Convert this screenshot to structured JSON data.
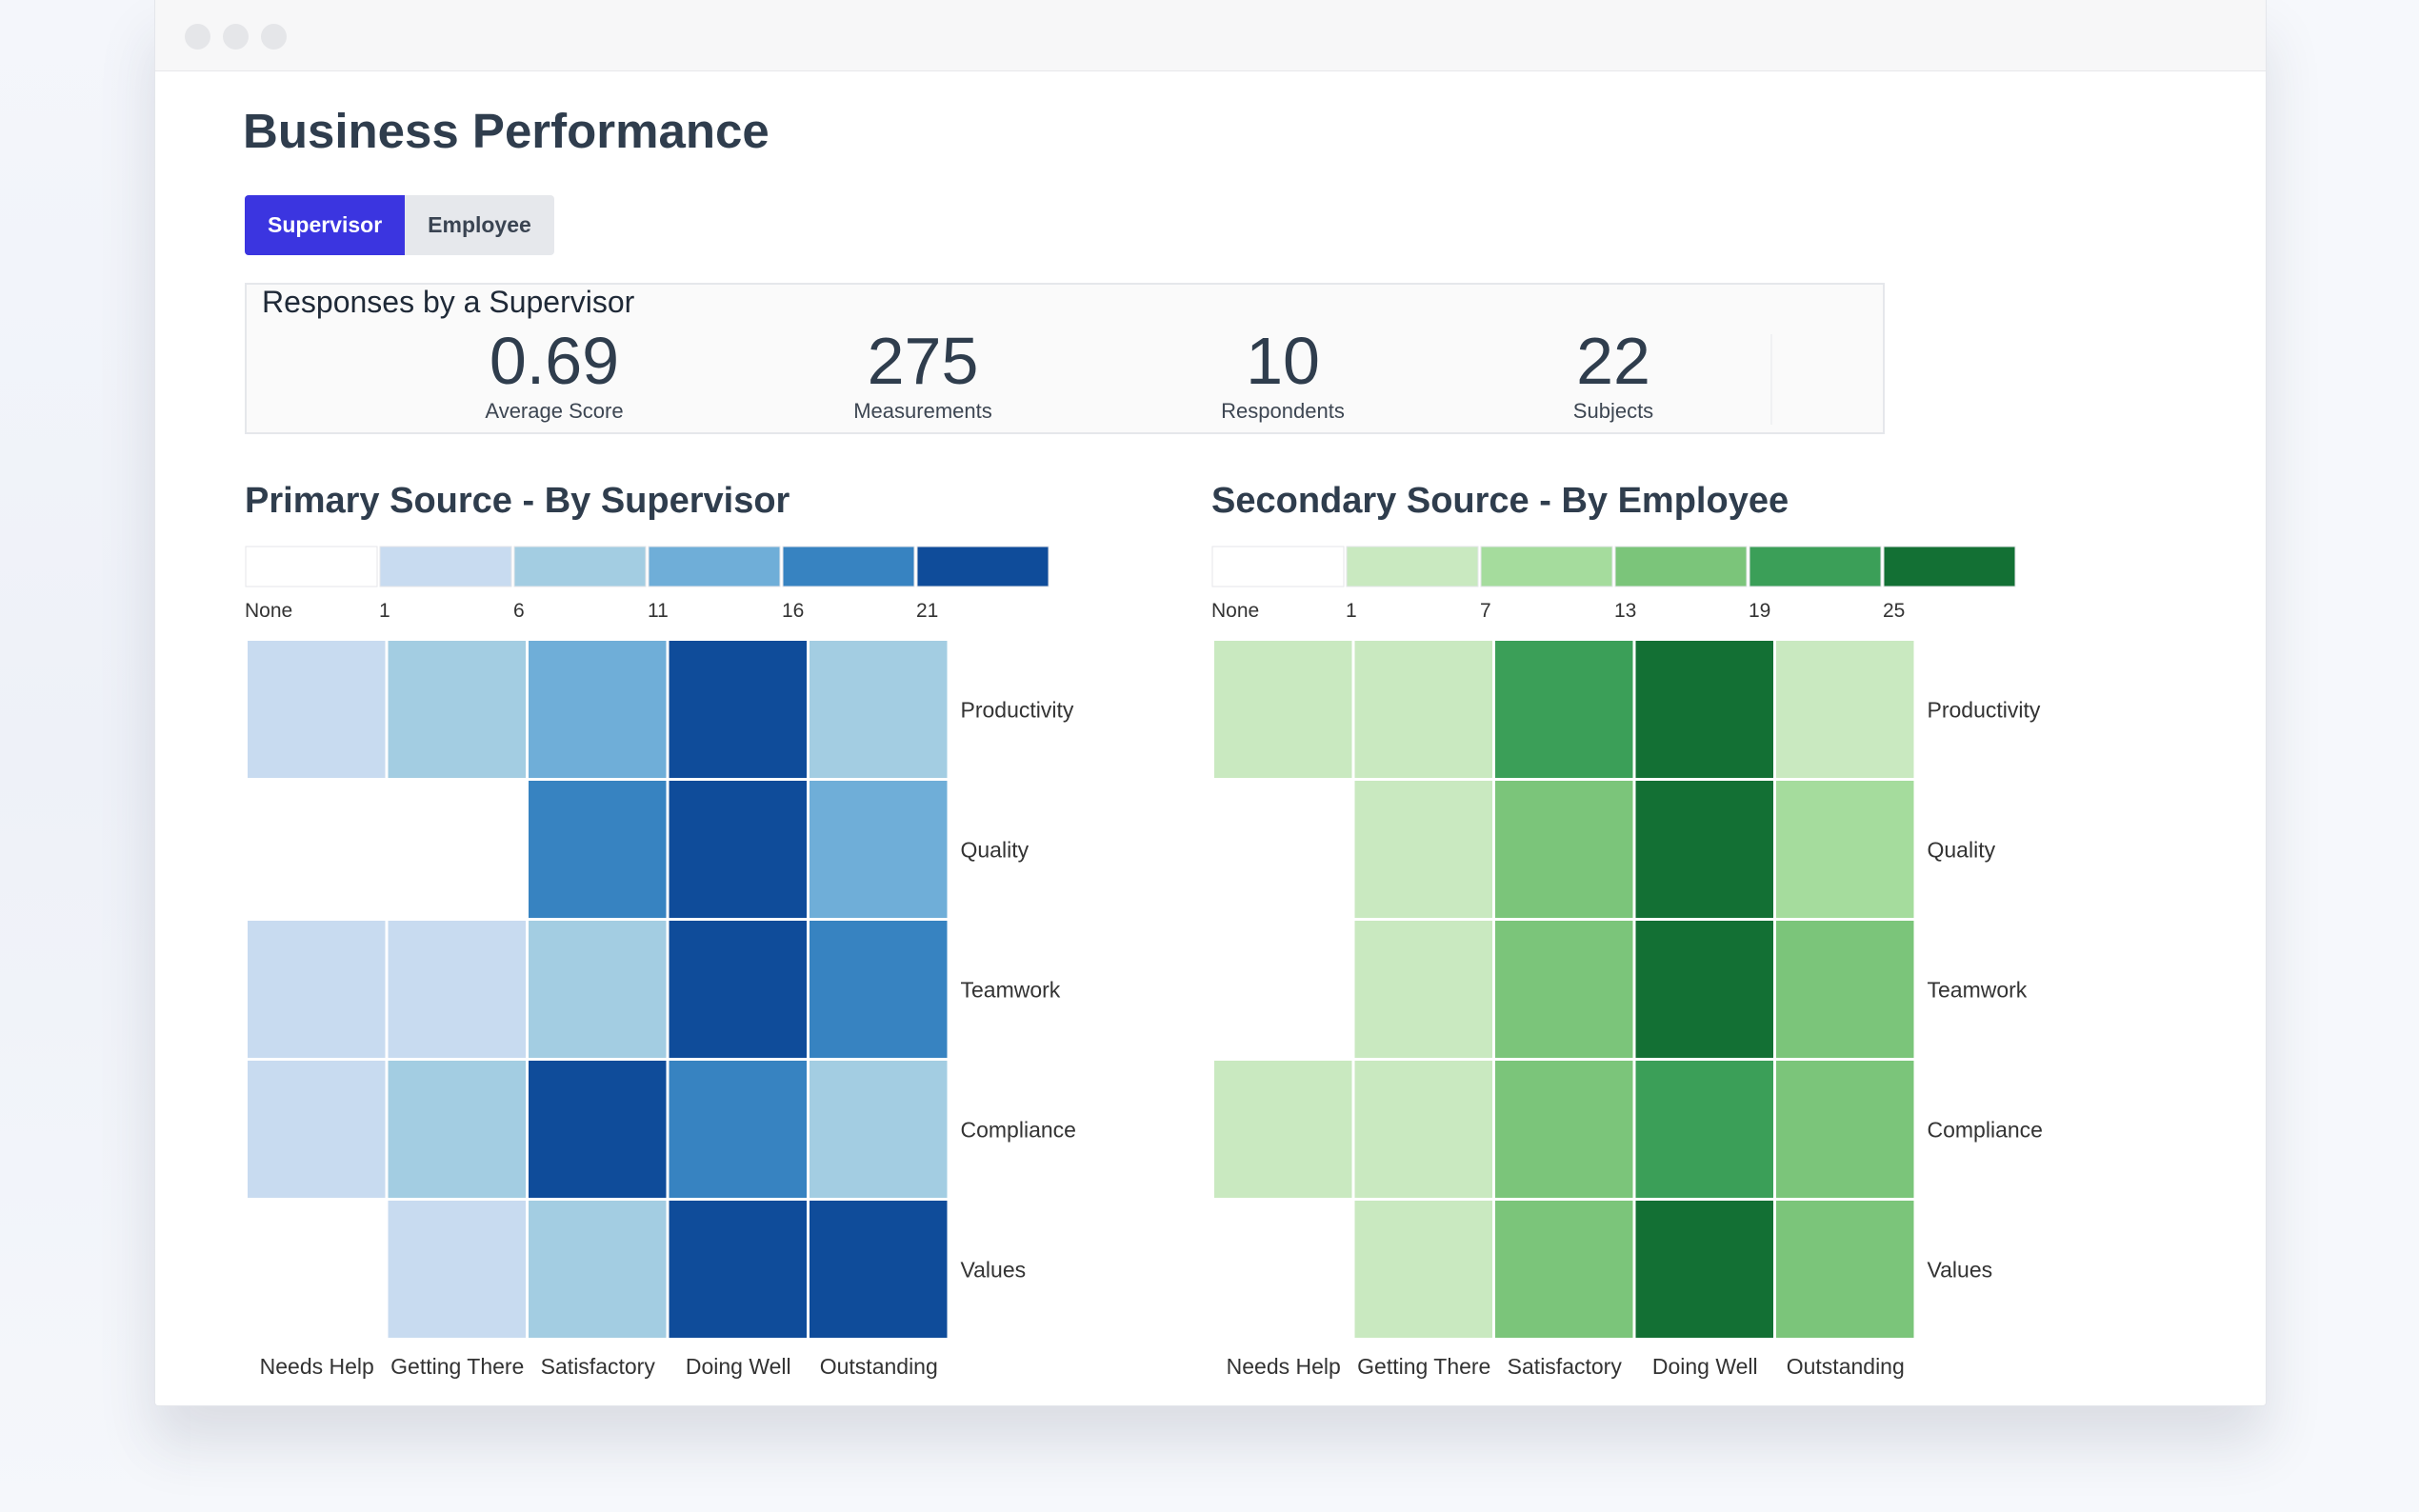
{
  "page": {
    "title": "Business Performance",
    "tabs": [
      {
        "label": "Supervisor",
        "active": true
      },
      {
        "label": "Employee",
        "active": false
      }
    ]
  },
  "summary": {
    "title": "Responses by a Supervisor",
    "stats": [
      {
        "value": "0.69",
        "label": "Average Score"
      },
      {
        "value": "275",
        "label": "Measurements"
      },
      {
        "value": "10",
        "label": "Respondents"
      },
      {
        "value": "22",
        "label": "Subjects"
      }
    ]
  },
  "colors": {
    "accent": "#3b35e0",
    "tab_inactive": "#e6e8ec"
  },
  "chart_data": [
    {
      "type": "heatmap",
      "title": "Primary Source - By Supervisor",
      "columns": [
        "Needs Help",
        "Getting There",
        "Satisfactory",
        "Doing Well",
        "Outstanding"
      ],
      "rows": [
        "Productivity",
        "Quality",
        "Teamwork",
        "Compliance",
        "Values"
      ],
      "legend": {
        "labels": [
          "None",
          "1",
          "6",
          "11",
          "16",
          "21"
        ],
        "colors": [
          "#ffffff",
          "#c8dbf0",
          "#a3cde2",
          "#6faed8",
          "#3783c1",
          "#0f4c9a"
        ]
      },
      "levels": [
        [
          1,
          2,
          3,
          5,
          2
        ],
        [
          0,
          0,
          4,
          5,
          3
        ],
        [
          1,
          1,
          2,
          5,
          4
        ],
        [
          1,
          2,
          5,
          4,
          2
        ],
        [
          0,
          1,
          2,
          5,
          5
        ]
      ]
    },
    {
      "type": "heatmap",
      "title": "Secondary Source - By Employee",
      "columns": [
        "Needs Help",
        "Getting There",
        "Satisfactory",
        "Doing Well",
        "Outstanding"
      ],
      "rows": [
        "Productivity",
        "Quality",
        "Teamwork",
        "Compliance",
        "Values"
      ],
      "legend": {
        "labels": [
          "None",
          "1",
          "7",
          "13",
          "19",
          "25"
        ],
        "colors": [
          "#ffffff",
          "#c9e9c0",
          "#a5dc9d",
          "#7bc57a",
          "#3b9f58",
          "#137034"
        ]
      },
      "levels": [
        [
          1,
          1,
          4,
          5,
          1
        ],
        [
          0,
          1,
          3,
          5,
          2
        ],
        [
          0,
          1,
          3,
          5,
          3
        ],
        [
          1,
          1,
          3,
          4,
          3
        ],
        [
          0,
          1,
          3,
          5,
          3
        ]
      ]
    }
  ]
}
